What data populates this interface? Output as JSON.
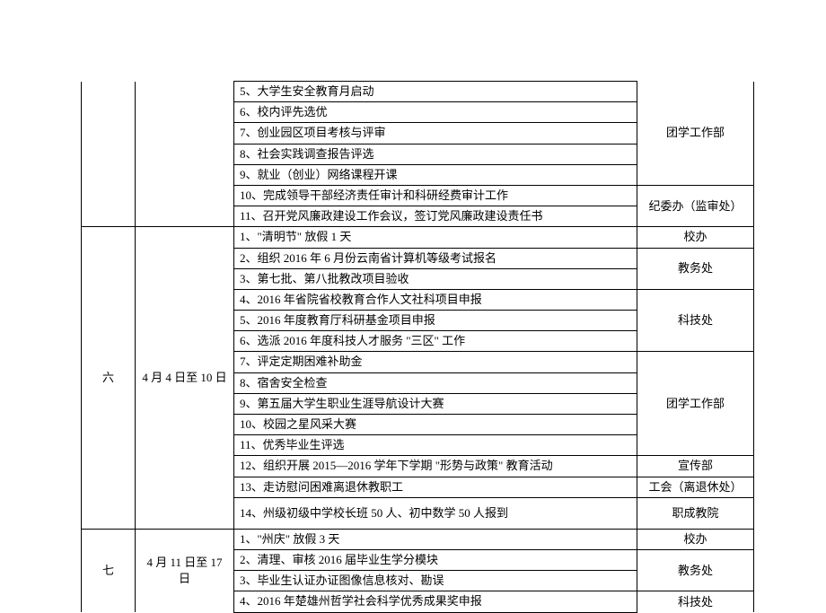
{
  "table": {
    "col_widths": {
      "week": 60,
      "date": 110,
      "dept": 130
    },
    "border_color": "#000000",
    "background_color": "#ffffff",
    "font_size": 13,
    "rows": [
      {
        "week": "",
        "date": "",
        "task": "5、大学生安全教育月启动",
        "dept": "团学工作部",
        "week_span": 7,
        "date_span": 7,
        "dept_span": 5,
        "week_open_top": true,
        "date_open_top": true,
        "dept_open_top": true
      },
      {
        "task": "6、校内评先选优"
      },
      {
        "task": "7、创业园区项目考核与评审"
      },
      {
        "task": "8、社会实践调查报告评选"
      },
      {
        "task": "9、就业（创业）网络课程开课"
      },
      {
        "task": "10、完成领导干部经济责任审计和科研经费审计工作",
        "dept": "纪委办（监审处）",
        "dept_span": 2
      },
      {
        "task": "11、召开党风廉政建设工作会议，签订党风廉政建设责任书"
      },
      {
        "week": "六",
        "date": "4 月 4 日至 10 日",
        "task": "1、\"清明节\" 放假 1 天",
        "dept": "校办",
        "week_span": 14,
        "date_span": 14,
        "dept_span": 1
      },
      {
        "task": "2、组织 2016 年 6 月份云南省计算机等级考试报名",
        "dept": "教务处",
        "dept_span": 2
      },
      {
        "task": "3、第七批、第八批教改项目验收"
      },
      {
        "task": "4、2016 年省院省校教育合作人文社科项目申报",
        "dept": "科技处",
        "dept_span": 3
      },
      {
        "task": "5、2016 年度教育厅科研基金项目申报"
      },
      {
        "task": "6、选派 2016 年度科技人才服务 \"三区\" 工作"
      },
      {
        "task": "7、评定定期困难补助金",
        "dept": "团学工作部",
        "dept_span": 5
      },
      {
        "task": "8、宿舍安全检查"
      },
      {
        "task": "9、第五届大学生职业生涯导航设计大赛"
      },
      {
        "task": "10、校园之星风采大赛"
      },
      {
        "task": "11、优秀毕业生评选"
      },
      {
        "task": "12、组织开展 2015—2016 学年下学期 \"形势与政策\" 教育活动",
        "dept": "宣传部",
        "dept_span": 1
      },
      {
        "task": "13、走访慰问困难离退休教职工",
        "dept": "工会（离退休处）",
        "dept_span": 1
      },
      {
        "task": "14、州级初级中学校长班 50 人、初中数学 50 人报到",
        "dept": "职成教院",
        "dept_span": 1,
        "tall": true
      },
      {
        "week": "七",
        "date": "4 月 11 日至 17 日",
        "task": "1、\"州庆\" 放假 3 天",
        "dept": "校办",
        "week_span": 4,
        "date_span": 4,
        "dept_span": 1,
        "week_open_bottom": true,
        "date_open_bottom": true
      },
      {
        "task": "2、清理、审核 2016 届毕业生学分模块",
        "dept": "教务处",
        "dept_span": 2
      },
      {
        "task": "3、毕业生认证办证图像信息核对、勘误"
      },
      {
        "task": "4、2016 年楚雄州哲学社会科学优秀成果奖申报",
        "dept": "科技处",
        "dept_span": 1,
        "dept_open_bottom": true
      }
    ]
  }
}
